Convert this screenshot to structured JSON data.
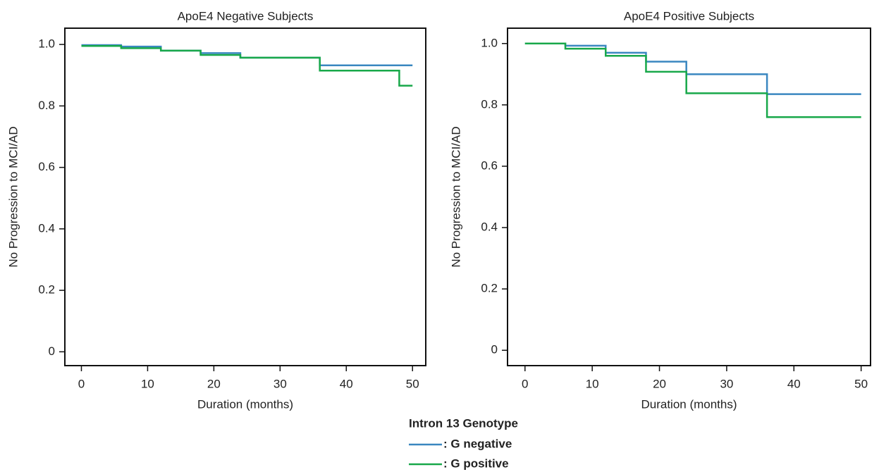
{
  "chart_data": [
    {
      "type": "step",
      "title": "ApoE4 Negative Subjects",
      "x_label": "Duration (months)",
      "y_label": "No Progression to MCI/AD",
      "legend_title": "Intron 13 Genotype",
      "x": [
        0,
        6,
        12,
        18,
        24,
        36,
        48,
        50
      ],
      "series": [
        {
          "name": ": G negative",
          "color": "#3a87c0",
          "values": [
            0.998,
            0.993,
            0.98,
            0.972,
            0.957,
            0.932,
            0.932,
            0.932
          ]
        },
        {
          "name": ": G positive",
          "color": "#18a84a",
          "values": [
            0.995,
            0.988,
            0.98,
            0.966,
            0.957,
            0.915,
            0.866,
            0.866
          ]
        }
      ],
      "xlim": [
        -2.5,
        52
      ],
      "ylim": [
        -0.045,
        1.053
      ],
      "xticks": [
        0,
        10,
        20,
        30,
        40,
        50
      ],
      "yticks": [
        0,
        0.2,
        0.4,
        0.6,
        0.8,
        {
          "value": 1,
          "label": "1.0"
        }
      ]
    },
    {
      "type": "step",
      "title": "ApoE4 Positive Subjects",
      "x_label": "Duration (months)",
      "y_label": "No Progression to MCI/AD",
      "x": [
        0,
        6,
        12,
        18,
        24,
        36,
        50
      ],
      "series": [
        {
          "color": "#3a87c0",
          "values": [
            1.0,
            0.993,
            0.97,
            0.941,
            0.9,
            0.835,
            0.835
          ]
        },
        {
          "color": "#18a84a",
          "values": [
            1.0,
            0.983,
            0.96,
            0.908,
            0.838,
            0.76,
            0.76
          ]
        }
      ],
      "xlim": [
        -2.6,
        51.4
      ],
      "ylim": [
        -0.05,
        1.05
      ],
      "xticks": [
        0,
        10,
        20,
        30,
        40,
        50
      ],
      "yticks": [
        0,
        0.2,
        0.4,
        0.6,
        0.8,
        {
          "value": 1,
          "label": "1.0"
        }
      ]
    }
  ]
}
